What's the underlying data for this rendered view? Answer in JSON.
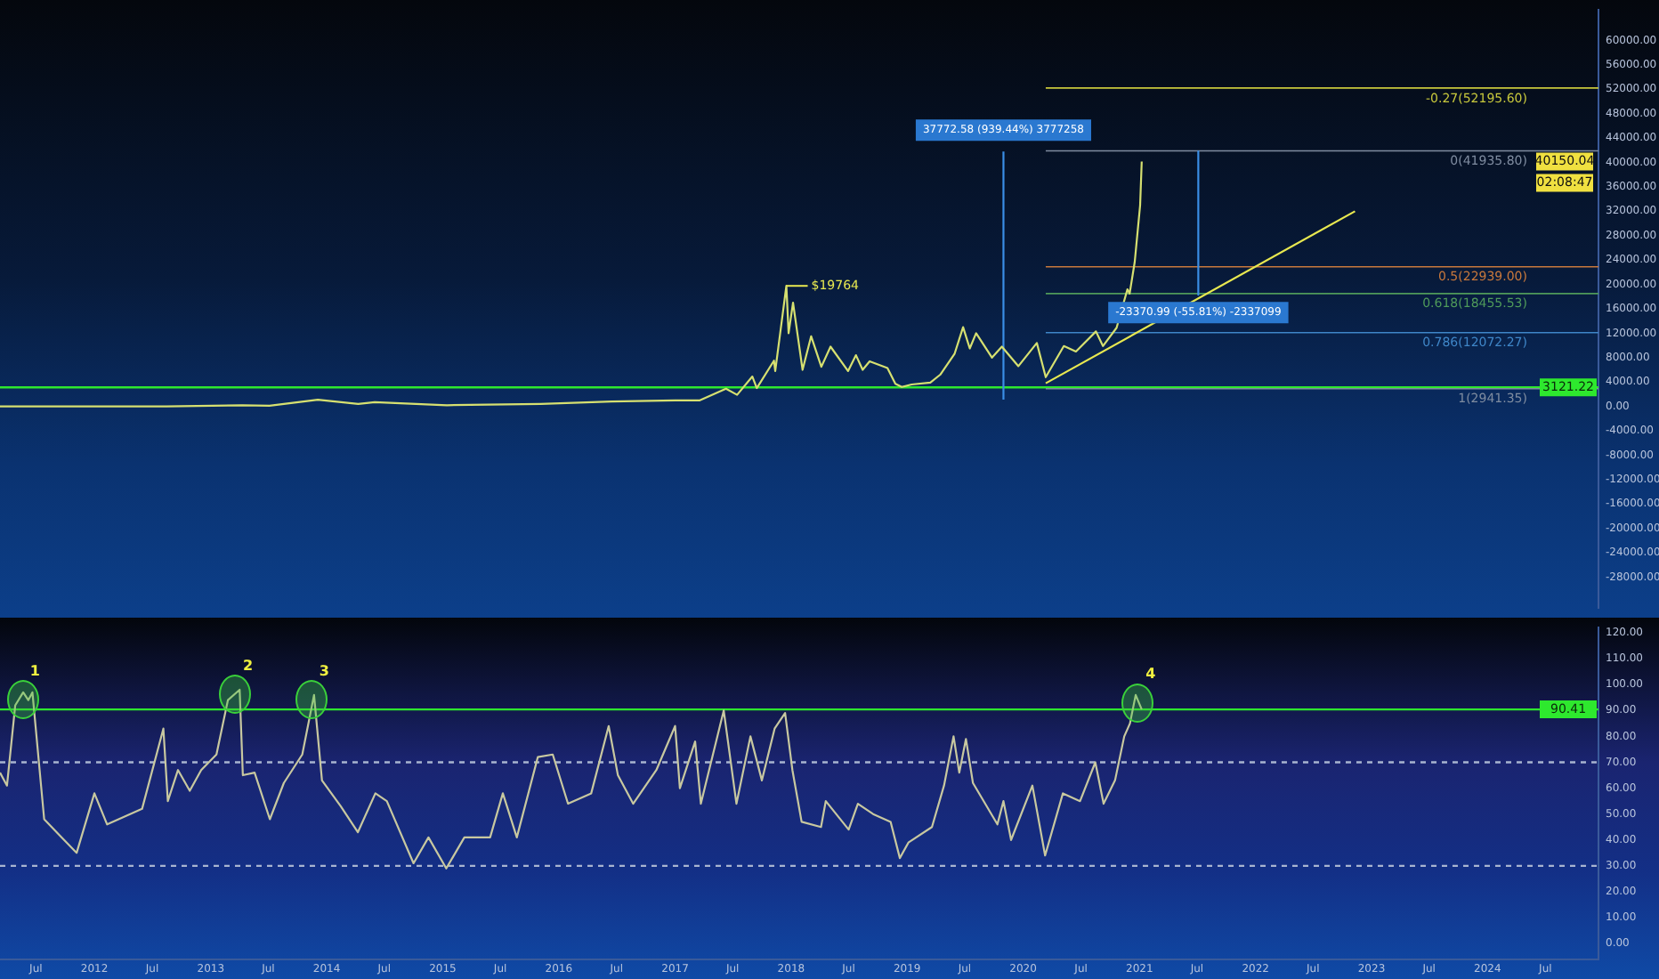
{
  "chart_data": [
    {
      "type": "line",
      "xlim": [
        "2011-03-10",
        "2024-12-15"
      ],
      "ylim": [
        -33000,
        65000
      ],
      "tick_labels": "y",
      "yticks": [
        {
          "value": -28000,
          "label": "-28000.00"
        },
        {
          "value": -24000,
          "label": "-24000.00"
        },
        {
          "value": -20000,
          "label": "-20000.00"
        },
        {
          "value": -16000,
          "label": "-16000.00"
        },
        {
          "value": -12000,
          "label": "-12000.00"
        },
        {
          "value": -8000,
          "label": "-8000.00"
        },
        {
          "value": -4000,
          "label": "-4000.00"
        },
        {
          "value": 0,
          "label": "0.00"
        },
        {
          "value": 4000,
          "label": "4000.00"
        },
        {
          "value": 8000,
          "label": "8000.00"
        },
        {
          "value": 12000,
          "label": "12000.00"
        },
        {
          "value": 16000,
          "label": "16000.00"
        },
        {
          "value": 20000,
          "label": "20000.00"
        },
        {
          "value": 24000,
          "label": "24000.00"
        },
        {
          "value": 28000,
          "label": "28000.00"
        },
        {
          "value": 32000,
          "label": "32000.00"
        },
        {
          "value": 36000,
          "label": "36000.00"
        },
        {
          "value": 40000,
          "label": "40000.00"
        },
        {
          "value": 44000,
          "label": "44000.00"
        },
        {
          "value": 48000,
          "label": "48000.00"
        },
        {
          "value": 52000,
          "label": "52000.00"
        },
        {
          "value": 56000,
          "label": "56000.00"
        },
        {
          "value": 60000,
          "label": "60000.00"
        }
      ],
      "series": [
        {
          "color": "#d6e070",
          "x": [
            "2011-03-10",
            "2011-06-08",
            "2011-11-15",
            "2012-08-15",
            "2013-04-10",
            "2013-07-05",
            "2013-12-04",
            "2014-04-10",
            "2014-06-01",
            "2015-01-14",
            "2015-11-05",
            "2016-06-15",
            "2017-01-01",
            "2017-03-20",
            "2017-06-10",
            "2017-07-15",
            "2017-09-01",
            "2017-09-15",
            "2017-11-08",
            "2017-11-12",
            "2017-12-17",
            "2017-12-24",
            "2018-01-07",
            "2018-02-06",
            "2018-03-05",
            "2018-04-06",
            "2018-05-05",
            "2018-06-29",
            "2018-07-24",
            "2018-08-14",
            "2018-09-05",
            "2018-10-31",
            "2018-11-25",
            "2018-12-15",
            "2019-01-15",
            "2019-03-15",
            "2019-04-15",
            "2019-05-30",
            "2019-06-26",
            "2019-07-17",
            "2019-08-06",
            "2019-09-25",
            "2019-10-26",
            "2019-12-17",
            "2020-02-13",
            "2020-03-12",
            "2020-05-08",
            "2020-06-15",
            "2020-08-17",
            "2020-09-08",
            "2020-10-21",
            "2020-11-24",
            "2020-12-01",
            "2020-12-17",
            "2021-01-03",
            "2021-01-08"
          ],
          "values": [
            0,
            0,
            0,
            0,
            200,
            100,
            1100,
            400,
            700,
            200,
            400,
            800,
            1000,
            1000,
            2900,
            1900,
            4900,
            3000,
            7500,
            5800,
            19764,
            12000,
            17000,
            6000,
            11500,
            6500,
            9800,
            5800,
            8400,
            6000,
            7400,
            6300,
            3700,
            3200,
            3600,
            3900,
            5200,
            8600,
            13000,
            9500,
            12000,
            8000,
            9800,
            6600,
            10400,
            4800,
            9900,
            9000,
            12300,
            9900,
            12900,
            19200,
            18500,
            23700,
            33000,
            40150
          ]
        },
        {
          "color": "#e8e850",
          "x": [
            "2020-03-12",
            "2022-11-10"
          ],
          "values": [
            3800,
            32000
          ]
        },
        {
          "color": "#3a8ee6",
          "x": [
            "2019-10-31",
            "2019-10-31"
          ],
          "values": [
            1100,
            41800
          ]
        },
        {
          "color": "#3a8ee6",
          "x": [
            "2021-07-05",
            "2021-07-05"
          ],
          "values": [
            41800,
            18300
          ]
        },
        {
          "name": "-0.27(52195.60)",
          "color": "#c8c83c",
          "x": [
            "2020-03-12",
            "2024-12-15"
          ],
          "values": [
            52200,
            52200
          ]
        },
        {
          "name": "0(41935.80)",
          "color": "#7f8ca0",
          "x": [
            "2020-03-12",
            "2024-12-15"
          ],
          "values": [
            41900,
            41900
          ]
        },
        {
          "name": "0.5(22939.00)",
          "color": "#c8783c",
          "x": [
            "2020-03-12",
            "2024-12-15"
          ],
          "values": [
            22900,
            22900
          ]
        },
        {
          "name": "0.618(18455.53)",
          "color": "#4f9a5a",
          "x": [
            "2020-03-12",
            "2024-12-15"
          ],
          "values": [
            18500,
            18500
          ]
        },
        {
          "name": "0.786(12072.27)",
          "color": "#3f86c8",
          "x": [
            "2020-03-12",
            "2024-12-15"
          ],
          "values": [
            12100,
            12100
          ]
        },
        {
          "name": "1(2941.35)",
          "color": "#7f8ca0",
          "x": [
            "2020-03-12",
            "2024-12-15"
          ],
          "values": [
            2900,
            2900
          ]
        }
      ],
      "ref_lines": [
        {
          "axis": "y",
          "value": 3121.22,
          "label": "3121.22",
          "color": "#2ee82e"
        }
      ],
      "annotations": [
        {
          "text": "$19764",
          "x": "2017-12-17",
          "y": 19764
        },
        {
          "text": "37772.58 (939.44%) 3777258",
          "x": "2019-10-31",
          "y": 41800
        },
        {
          "text": "-23370.99 (-55.81%) -2337099",
          "x": "2021-07-05",
          "y": 18300
        },
        "40150.04",
        "02:08:47"
      ]
    },
    {
      "type": "line",
      "xlim": [
        "2011-03-10",
        "2024-12-15"
      ],
      "ylim": [
        -6,
        122
      ],
      "xticks": [
        {
          "value": "2011-07-01",
          "label": "Jul"
        },
        {
          "value": "2012-01-01",
          "label": "2012"
        },
        {
          "value": "2012-07-01",
          "label": "Jul"
        },
        {
          "value": "2013-01-01",
          "label": "2013"
        },
        {
          "value": "2013-07-01",
          "label": "Jul"
        },
        {
          "value": "2014-01-01",
          "label": "2014"
        },
        {
          "value": "2014-07-01",
          "label": "Jul"
        },
        {
          "value": "2015-01-01",
          "label": "2015"
        },
        {
          "value": "2015-07-01",
          "label": "Jul"
        },
        {
          "value": "2016-01-01",
          "label": "2016"
        },
        {
          "value": "2016-07-01",
          "label": "Jul"
        },
        {
          "value": "2017-01-01",
          "label": "2017"
        },
        {
          "value": "2017-07-01",
          "label": "Jul"
        },
        {
          "value": "2018-01-01",
          "label": "2018"
        },
        {
          "value": "2018-07-01",
          "label": "Jul"
        },
        {
          "value": "2019-01-01",
          "label": "2019"
        },
        {
          "value": "2019-07-01",
          "label": "Jul"
        },
        {
          "value": "2020-01-01",
          "label": "2020"
        },
        {
          "value": "2020-07-01",
          "label": "Jul"
        },
        {
          "value": "2021-01-01",
          "label": "2021"
        },
        {
          "value": "2021-07-01",
          "label": "Jul"
        },
        {
          "value": "2022-01-01",
          "label": "2022"
        },
        {
          "value": "2022-07-01",
          "label": "Jul"
        },
        {
          "value": "2023-01-01",
          "label": "2023"
        },
        {
          "value": "2023-07-01",
          "label": "Jul"
        },
        {
          "value": "2024-01-01",
          "label": "2024"
        },
        {
          "value": "2024-07-01",
          "label": "Jul"
        }
      ],
      "yticks": [
        {
          "value": 0,
          "label": "0.00"
        },
        {
          "value": 10,
          "label": "10.00"
        },
        {
          "value": 20,
          "label": "20.00"
        },
        {
          "value": 30,
          "label": "30.00"
        },
        {
          "value": 40,
          "label": "40.00"
        },
        {
          "value": 50,
          "label": "50.00"
        },
        {
          "value": 60,
          "label": "60.00"
        },
        {
          "value": 70,
          "label": "70.00"
        },
        {
          "value": 80,
          "label": "80.00"
        },
        {
          "value": 90,
          "label": "90.00"
        },
        {
          "value": 100,
          "label": "100.00"
        },
        {
          "value": 110,
          "label": "110.00"
        },
        {
          "value": 120,
          "label": "120.00"
        }
      ],
      "series": [
        {
          "color": "#c8c8a0",
          "x": [
            "2011-03-10",
            "2011-04-01",
            "2011-04-27",
            "2011-05-22",
            "2011-06-07",
            "2011-06-20",
            "2011-07-27",
            "2011-09-12",
            "2011-11-06",
            "2012-01-01",
            "2012-02-10",
            "2012-05-30",
            "2012-08-05",
            "2012-08-19",
            "2012-09-20",
            "2012-10-27",
            "2012-12-02",
            "2013-01-19",
            "2013-02-24",
            "2013-04-02",
            "2013-04-12",
            "2013-05-19",
            "2013-07-06",
            "2013-08-19",
            "2013-10-16",
            "2013-11-22",
            "2013-12-17",
            "2014-02-14",
            "2014-04-09",
            "2014-06-03",
            "2014-07-09",
            "2014-10-01",
            "2014-11-17",
            "2015-01-12",
            "2015-03-10",
            "2015-05-30",
            "2015-07-09",
            "2015-08-22",
            "2015-10-27",
            "2015-12-13",
            "2016-01-30",
            "2016-04-12",
            "2016-06-06",
            "2016-07-05",
            "2016-08-22",
            "2016-11-03",
            "2017-01-01",
            "2017-01-16",
            "2017-03-05",
            "2017-03-23",
            "2017-06-03",
            "2017-07-13",
            "2017-08-26",
            "2017-10-01",
            "2017-11-10",
            "2017-12-13",
            "2018-01-05",
            "2018-02-03",
            "2018-04-05",
            "2018-04-20",
            "2018-07-01",
            "2018-07-30",
            "2018-09-16",
            "2018-11-10",
            "2018-12-09",
            "2019-01-05",
            "2019-03-20",
            "2019-04-27",
            "2019-05-27",
            "2019-06-14",
            "2019-07-05",
            "2019-07-27",
            "2019-10-12",
            "2019-10-31",
            "2019-11-24",
            "2020-01-30",
            "2020-03-10",
            "2020-05-05",
            "2020-06-28",
            "2020-08-15",
            "2020-09-10",
            "2020-10-16",
            "2020-11-14",
            "2020-12-02",
            "2020-12-20",
            "2021-01-08"
          ],
          "values": [
            66,
            61,
            92,
            97,
            94,
            97,
            48,
            42,
            35,
            58,
            46,
            52,
            83,
            55,
            67,
            59,
            67,
            73,
            94,
            98,
            65,
            66,
            48,
            62,
            73,
            96,
            63,
            53,
            43,
            58,
            55,
            31,
            41,
            29,
            41,
            41,
            58,
            41,
            72,
            73,
            54,
            58,
            84,
            65,
            54,
            67,
            84,
            60,
            78,
            54,
            90,
            54,
            80,
            63,
            83,
            89,
            67,
            47,
            45,
            55,
            44,
            54,
            50,
            47,
            33,
            39,
            45,
            61,
            80,
            66,
            79,
            62,
            46,
            55,
            40,
            61,
            34,
            58,
            55,
            70,
            54,
            63,
            80,
            85,
            96,
            90.4
          ]
        }
      ],
      "ref_lines": [
        {
          "axis": "y",
          "value": 90.41,
          "label": "90.41",
          "color": "#2ee82e"
        },
        {
          "axis": "y",
          "value": 70,
          "color": "#a8b4d0",
          "line_style": "dashed"
        },
        {
          "axis": "y",
          "value": 30,
          "color": "#a8b4d0",
          "line_style": "dashed"
        }
      ],
      "annotations": [
        {
          "text": "1",
          "x": "2011-05-20",
          "y": 94
        },
        {
          "text": "2",
          "x": "2013-03-20",
          "y": 96
        },
        {
          "text": "3",
          "x": "2013-11-15",
          "y": 94
        },
        {
          "text": "4",
          "x": "2020-12-28",
          "y": 93
        }
      ]
    }
  ]
}
